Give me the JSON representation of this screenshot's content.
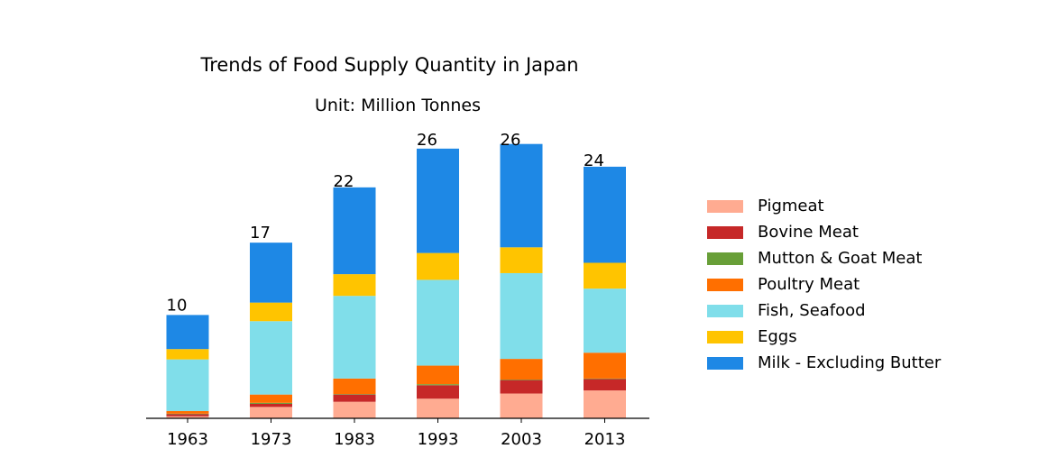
{
  "chart_data": {
    "type": "bar",
    "stacked": true,
    "title": "Trends of Food Supply Quantity in Japan",
    "subtitle": "Unit: Million Tonnes",
    "xlabel": "",
    "ylabel": "",
    "categories": [
      "1963",
      "1973",
      "1983",
      "1993",
      "2003",
      "2013"
    ],
    "ylim": [
      0,
      29.5
    ],
    "grid": false,
    "legend_position": "right",
    "series": [
      {
        "name": "Pigmeat",
        "color": "#ffab91",
        "values": [
          0.2,
          1.1,
          1.6,
          1.9,
          2.4,
          2.7
        ]
      },
      {
        "name": "Bovine Meat",
        "color": "#c62828",
        "values": [
          0.2,
          0.3,
          0.7,
          1.3,
          1.3,
          1.1
        ]
      },
      {
        "name": "Mutton & Goat Meat",
        "color": "#689f38",
        "values": [
          0.05,
          0.1,
          0.05,
          0.1,
          0.05,
          0.05
        ]
      },
      {
        "name": "Poultry Meat",
        "color": "#ff6f00",
        "values": [
          0.25,
          0.8,
          1.5,
          1.8,
          2.0,
          2.5
        ]
      },
      {
        "name": "Fish, Seafood",
        "color": "#80deea",
        "values": [
          5.0,
          7.1,
          8.0,
          8.3,
          8.3,
          6.2
        ]
      },
      {
        "name": "Eggs",
        "color": "#ffc400",
        "values": [
          1.0,
          1.8,
          2.1,
          2.6,
          2.5,
          2.5
        ]
      },
      {
        "name": "Milk - Excluding Butter",
        "color": "#1e88e5",
        "values": [
          3.3,
          5.8,
          8.4,
          10.1,
          10.0,
          9.3
        ]
      }
    ],
    "totals": [
      10,
      17,
      22,
      26,
      26,
      24
    ],
    "total_labels": [
      "10",
      "17",
      "22",
      "26",
      "26",
      "24"
    ]
  }
}
